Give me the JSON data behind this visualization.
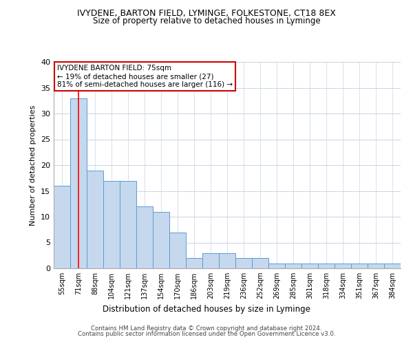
{
  "title1": "IVYDENE, BARTON FIELD, LYMINGE, FOLKESTONE, CT18 8EX",
  "title2": "Size of property relative to detached houses in Lyminge",
  "xlabel": "Distribution of detached houses by size in Lyminge",
  "ylabel": "Number of detached properties",
  "categories": [
    "55sqm",
    "71sqm",
    "88sqm",
    "104sqm",
    "121sqm",
    "137sqm",
    "154sqm",
    "170sqm",
    "186sqm",
    "203sqm",
    "219sqm",
    "236sqm",
    "252sqm",
    "269sqm",
    "285sqm",
    "301sqm",
    "318sqm",
    "334sqm",
    "351sqm",
    "367sqm",
    "384sqm"
  ],
  "values": [
    16,
    33,
    19,
    17,
    17,
    12,
    11,
    7,
    2,
    3,
    3,
    2,
    2,
    1,
    1,
    1,
    1,
    1,
    1,
    1,
    1
  ],
  "bar_color": "#c5d8ed",
  "bar_edge_color": "#5b9bd5",
  "red_line_index": 1,
  "annotation_text": "IVYDENE BARTON FIELD: 75sqm\n← 19% of detached houses are smaller (27)\n81% of semi-detached houses are larger (116) →",
  "annotation_box_color": "#ffffff",
  "annotation_box_edge_color": "#cc0000",
  "footer1": "Contains HM Land Registry data © Crown copyright and database right 2024.",
  "footer2": "Contains public sector information licensed under the Open Government Licence v3.0.",
  "ylim": [
    0,
    40
  ],
  "yticks": [
    0,
    5,
    10,
    15,
    20,
    25,
    30,
    35,
    40
  ],
  "bg_color": "#ffffff",
  "grid_color": "#c8d4e3"
}
